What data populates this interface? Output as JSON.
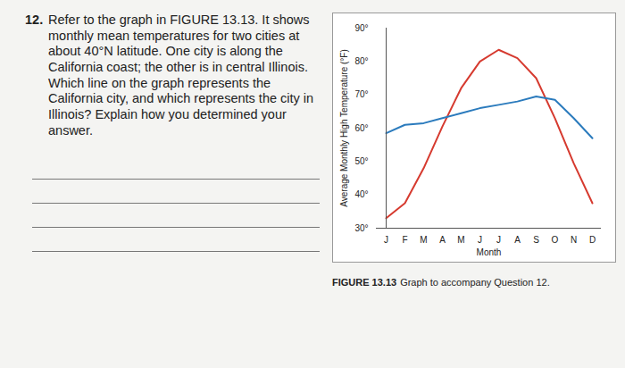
{
  "question": {
    "number": "12.",
    "text": "Refer to the graph in FIGURE 13.13. It shows monthly mean temperatures for two cities at about 40°N latitude. One city is along the California coast; the other is in central Illinois. Which line on the graph represents the California city, and which represents the city in Illinois? Explain how you determined your answer."
  },
  "chart_data": {
    "type": "line",
    "caption_label": "FIGURE 13.13",
    "caption": "Graph to accompany Question 12.",
    "x_label": "Month",
    "y_label": "Average Monthly High Temperature (°F)",
    "categories": [
      "J",
      "F",
      "M",
      "A",
      "M",
      "J",
      "J",
      "A",
      "S",
      "O",
      "N",
      "D"
    ],
    "series": [
      {
        "color": "#d63a2f",
        "values": [
          33,
          37.5,
          48,
          60.5,
          72,
          80,
          83.5,
          81,
          75,
          63,
          49.5,
          37.5
        ]
      },
      {
        "color": "#2b7bbd",
        "values": [
          58.5,
          61,
          61.5,
          63,
          64.5,
          66,
          67,
          68,
          69.5,
          68.5,
          63,
          57
        ]
      }
    ],
    "ylim": [
      30,
      90
    ],
    "yticks": [
      {
        "value": 30,
        "label": "30°"
      },
      {
        "value": 40,
        "label": "40°"
      },
      {
        "value": 50,
        "label": "50°"
      },
      {
        "value": 60,
        "label": "60°"
      },
      {
        "value": 70,
        "label": "70°"
      },
      {
        "value": 80,
        "label": "80°"
      },
      {
        "value": 90,
        "label": "90°"
      }
    ],
    "grid": false
  }
}
